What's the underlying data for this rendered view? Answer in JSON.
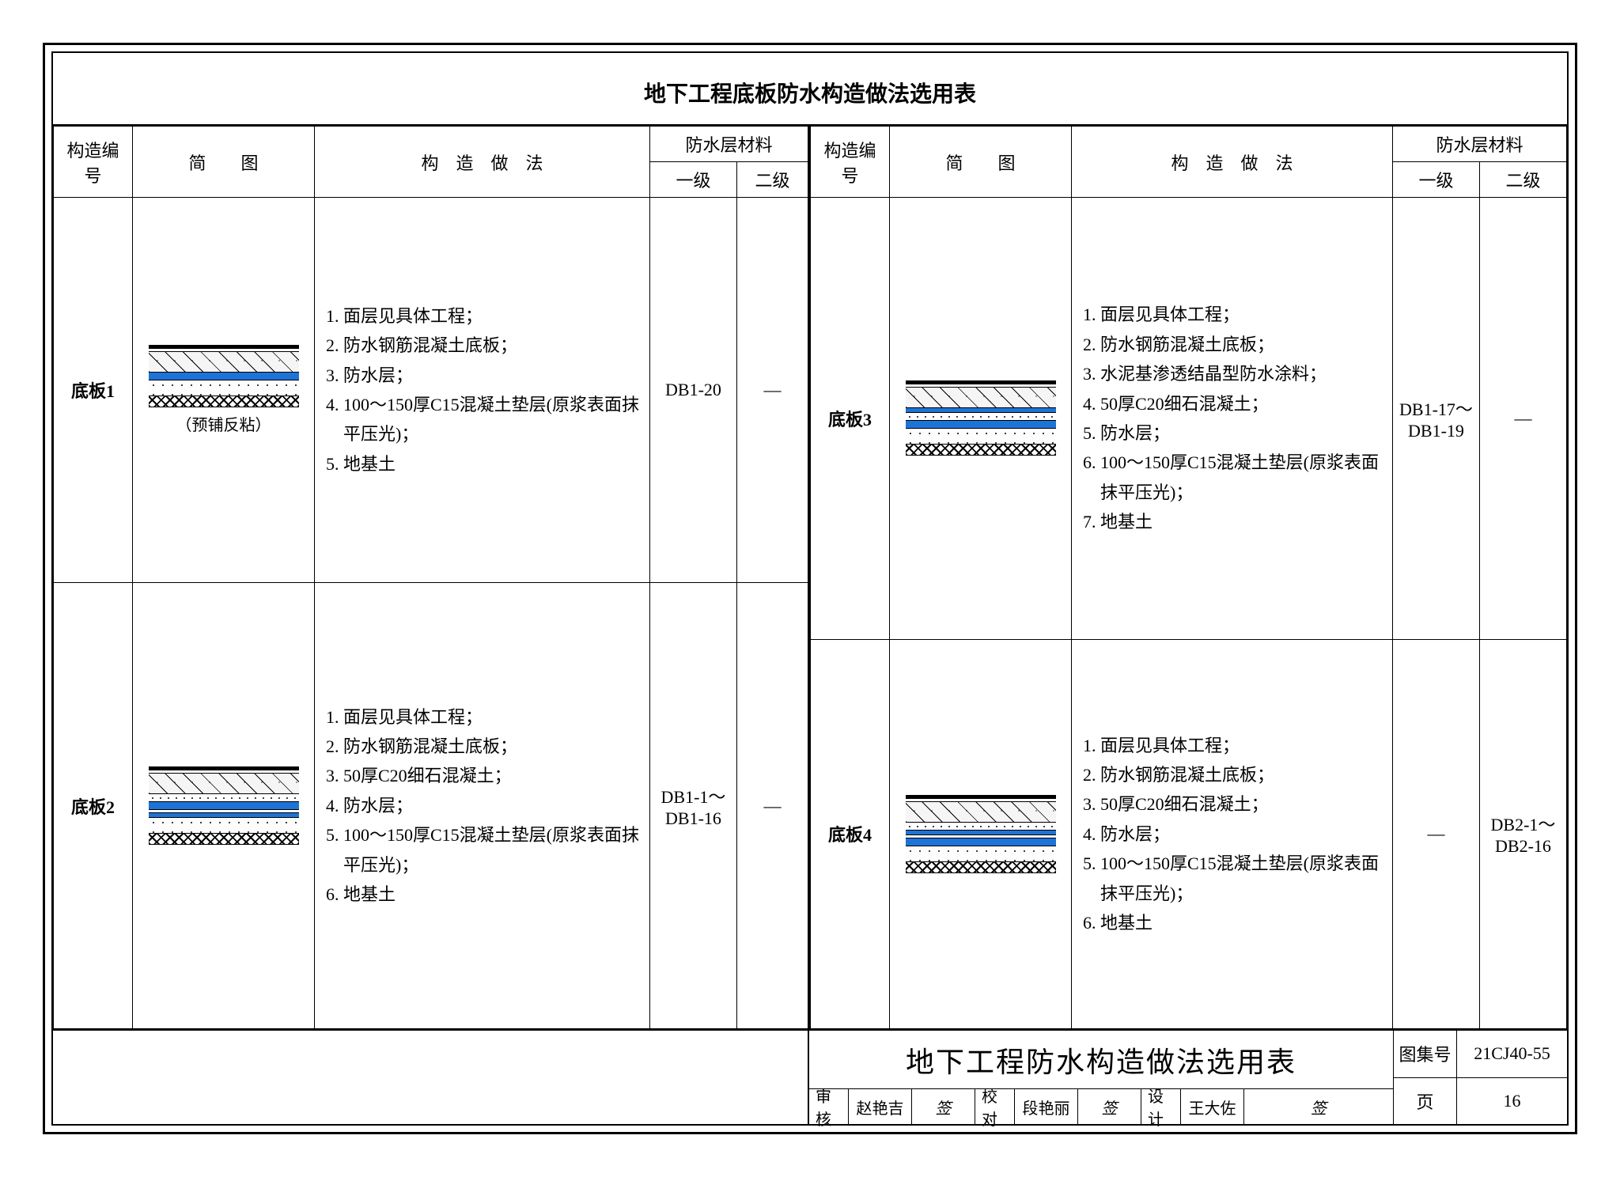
{
  "title": "地下工程底板防水构造做法选用表",
  "headers": {
    "id": "构造编号",
    "diagram": "简　　图",
    "method": "构　造　做　法",
    "material": "防水层材料",
    "level1": "一级",
    "level2": "二级"
  },
  "rows": [
    {
      "id": "底板1",
      "caption": "（预铺反粘）",
      "steps": [
        "面层见具体工程；",
        "防水钢筋混凝土底板；",
        "防水层；",
        "100～150厚C15混凝土垫层(原浆表面抹平压光)；",
        "地基土"
      ],
      "level1": "DB1-20",
      "level2": "—",
      "diagram": "A"
    },
    {
      "id": "底板2",
      "caption": "",
      "steps": [
        "面层见具体工程；",
        "防水钢筋混凝土底板；",
        "50厚C20细石混凝土；",
        "防水层；",
        "100～150厚C15混凝土垫层(原浆表面抹平压光)；",
        "地基土"
      ],
      "level1": "DB1-1～DB1-16",
      "level2": "—",
      "diagram": "B"
    },
    {
      "id": "底板3",
      "caption": "",
      "steps": [
        "面层见具体工程；",
        "防水钢筋混凝土底板；",
        "水泥基渗透结晶型防水涂料；",
        "50厚C20细石混凝土；",
        "防水层；",
        "100～150厚C15混凝土垫层(原浆表面抹平压光)；",
        "地基土"
      ],
      "level1": "DB1-17～DB1-19",
      "level2": "—",
      "diagram": "C"
    },
    {
      "id": "底板4",
      "caption": "",
      "steps": [
        "面层见具体工程；",
        "防水钢筋混凝土底板；",
        "50厚C20细石混凝土；",
        "防水层；",
        "100～150厚C15混凝土垫层(原浆表面抹平压光)；",
        "地基土"
      ],
      "level1": "—",
      "level2": "DB2-1～DB2-16",
      "diagram": "D"
    }
  ],
  "titleblock": {
    "drawing_title": "地下工程防水构造做法选用表",
    "labels": {
      "review": "审核",
      "check": "校对",
      "design": "设计",
      "atlas": "图集号",
      "page": "页"
    },
    "review_name": "赵艳吉",
    "check_name": "段艳丽",
    "design_name": "王大佐",
    "atlas_no": "21CJ40-55",
    "page_no": "16"
  },
  "colors": {
    "waterproof": "#1e73d6",
    "line": "#000000",
    "bg": "#ffffff"
  }
}
